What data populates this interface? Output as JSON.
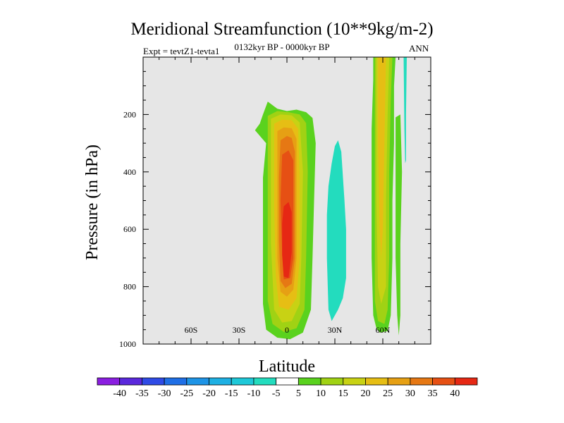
{
  "figure": {
    "title": "Meridional Streamfunction (10**9kg/m-2)",
    "expt_label": "Expt = tevtZ1-tevta1",
    "period_label": "0132kyr BP - 0000kyr BP",
    "season_label": "ANN"
  },
  "chart_data": {
    "type": "contour",
    "title": "Meridional Streamfunction (10**9kg/m-2)",
    "xlabel": "Latitude",
    "ylabel": "Pressure (in hPa)",
    "xlim": [
      -90,
      90
    ],
    "ylim": [
      1000,
      0
    ],
    "y_reversed": true,
    "background_color": "#e6e6e6",
    "x_ticks": [
      {
        "value": -60,
        "label": "60S"
      },
      {
        "value": -30,
        "label": "30S"
      },
      {
        "value": 0,
        "label": "0"
      },
      {
        "value": 30,
        "label": "30N"
      },
      {
        "value": 60,
        "label": "60N"
      }
    ],
    "y_ticks": [
      {
        "value": 200,
        "label": "200"
      },
      {
        "value": 400,
        "label": "400"
      },
      {
        "value": 600,
        "label": "600"
      },
      {
        "value": 800,
        "label": "800"
      },
      {
        "value": 1000,
        "label": "1000"
      }
    ],
    "colorbar": {
      "labels": [
        "-40",
        "-35",
        "-30",
        "-25",
        "-20",
        "-15",
        "-10",
        "-5",
        "5",
        "10",
        "15",
        "20",
        "25",
        "30",
        "35",
        "40"
      ],
      "colors": [
        "#8a1ee0",
        "#5a28dc",
        "#2f4be6",
        "#1f6fe6",
        "#1e94e6",
        "#1eb0e3",
        "#1ec8d8",
        "#23dcbe",
        "#ffffff",
        "#5ad21e",
        "#a0d214",
        "#c8d214",
        "#e6be14",
        "#e6a014",
        "#e67814",
        "#e65014",
        "#e62814"
      ]
    },
    "features": [
      {
        "name": "tropical-positive-cell",
        "center_lat": 0,
        "sign": "positive",
        "levels": [
          {
            "value": 5,
            "color": "#5ad21e",
            "points": [
              [
                -17,
                232
              ],
              [
                -15,
                200
              ],
              [
                -12,
                155
              ],
              [
                -6,
                180
              ],
              [
                0,
                188
              ],
              [
                6,
                183
              ],
              [
                12,
                192
              ],
              [
                16,
                212
              ],
              [
                18,
                300
              ],
              [
                17,
                500
              ],
              [
                16,
                700
              ],
              [
                15,
                880
              ],
              [
                10,
                960
              ],
              [
                2,
                983
              ],
              [
                -6,
                978
              ],
              [
                -13,
                950
              ],
              [
                -15,
                860
              ],
              [
                -15,
                650
              ],
              [
                -15,
                420
              ],
              [
                -13,
                300
              ],
              [
                -20,
                255
              ]
            ]
          },
          {
            "value": 10,
            "color": "#a0d214",
            "points": [
              [
                -12,
                205
              ],
              [
                -6,
                188
              ],
              [
                1,
                192
              ],
              [
                8,
                200
              ],
              [
                12,
                230
              ],
              [
                13,
                400
              ],
              [
                12,
                700
              ],
              [
                11,
                880
              ],
              [
                6,
                945
              ],
              [
                -2,
                958
              ],
              [
                -9,
                930
              ],
              [
                -12,
                850
              ],
              [
                -12,
                600
              ],
              [
                -12,
                350
              ]
            ]
          },
          {
            "value": 15,
            "color": "#c8d214",
            "points": [
              [
                -10,
                215
              ],
              [
                -4,
                200
              ],
              [
                3,
                203
              ],
              [
                8,
                228
              ],
              [
                10,
                400
              ],
              [
                9,
                700
              ],
              [
                8,
                860
              ],
              [
                3,
                920
              ],
              [
                -3,
                925
              ],
              [
                -8,
                880
              ],
              [
                -10,
                650
              ],
              [
                -10,
                360
              ]
            ]
          },
          {
            "value": 20,
            "color": "#e6be14",
            "points": [
              [
                -8,
                232
              ],
              [
                -3,
                218
              ],
              [
                3,
                220
              ],
              [
                7,
                250
              ],
              [
                8,
                420
              ],
              [
                8,
                700
              ],
              [
                6,
                840
              ],
              [
                1,
                880
              ],
              [
                -5,
                870
              ],
              [
                -7,
                760
              ],
              [
                -8,
                520
              ]
            ]
          },
          {
            "value": 25,
            "color": "#e6a014",
            "points": [
              [
                -6,
                258
              ],
              [
                -2,
                245
              ],
              [
                3,
                248
              ],
              [
                6,
                285
              ],
              [
                6,
                450
              ],
              [
                6,
                700
              ],
              [
                4,
                810
              ],
              [
                0,
                835
              ],
              [
                -4,
                818
              ],
              [
                -6,
                700
              ],
              [
                -6,
                460
              ]
            ]
          },
          {
            "value": 30,
            "color": "#e67814",
            "points": [
              [
                -4,
                290
              ],
              [
                0,
                275
              ],
              [
                3,
                282
              ],
              [
                5,
                330
              ],
              [
                5,
                500
              ],
              [
                5,
                700
              ],
              [
                3,
                790
              ],
              [
                -1,
                805
              ],
              [
                -4,
                780
              ],
              [
                -5,
                640
              ],
              [
                -5,
                420
              ]
            ]
          },
          {
            "value": 35,
            "color": "#e65014",
            "points": [
              [
                -3,
                340
              ],
              [
                1,
                325
              ],
              [
                4,
                360
              ],
              [
                4,
                550
              ],
              [
                4,
                700
              ],
              [
                2,
                770
              ],
              [
                -2,
                775
              ],
              [
                -3,
                680
              ],
              [
                -4,
                500
              ]
            ]
          },
          {
            "value": 40,
            "color": "#e62814",
            "points": [
              [
                -2,
                520
              ],
              [
                1,
                505
              ],
              [
                3,
                540
              ],
              [
                3,
                680
              ],
              [
                1,
                770
              ],
              [
                -2,
                765
              ],
              [
                -3,
                690
              ],
              [
                -3,
                580
              ]
            ]
          }
        ]
      },
      {
        "name": "subtropical-negative-cell",
        "center_lat": 32,
        "sign": "negative",
        "levels": [
          {
            "value": -5,
            "color": "#23dcbe",
            "points": [
              [
                30,
                310
              ],
              [
                32,
                290
              ],
              [
                34,
                330
              ],
              [
                36,
                500
              ],
              [
                37,
                600
              ],
              [
                37,
                770
              ],
              [
                35,
                840
              ],
              [
                32,
                880
              ],
              [
                28,
                920
              ],
              [
                26,
                880
              ],
              [
                25,
                700
              ],
              [
                25,
                550
              ],
              [
                26,
                450
              ],
              [
                28,
                370
              ]
            ]
          }
        ]
      },
      {
        "name": "midlatitude-positive-cell",
        "center_lat": 60,
        "sign": "positive",
        "levels": [
          {
            "value": 5,
            "color": "#5ad21e",
            "points": [
              [
                54,
                0
              ],
              [
                68,
                0
              ],
              [
                67,
                100
              ],
              [
                67,
                300
              ],
              [
                66,
                500
              ],
              [
                66,
                700
              ],
              [
                65,
                900
              ],
              [
                63,
                955
              ],
              [
                58,
                960
              ],
              [
                56,
                945
              ],
              [
                54,
                900
              ],
              [
                53,
                700
              ],
              [
                53,
                500
              ],
              [
                53,
                250
              ],
              [
                54,
                80
              ]
            ]
          },
          {
            "value": 10,
            "color": "#a0d214",
            "points": [
              [
                55,
                0
              ],
              [
                66,
                0
              ],
              [
                65,
                150
              ],
              [
                64,
                400
              ],
              [
                64,
                700
              ],
              [
                63,
                880
              ],
              [
                61,
                930
              ],
              [
                57,
                920
              ],
              [
                55,
                850
              ],
              [
                55,
                600
              ],
              [
                55,
                300
              ]
            ]
          },
          {
            "value": 15,
            "color": "#c8d214",
            "points": [
              [
                56,
                0
              ],
              [
                64,
                0
              ],
              [
                63,
                200
              ],
              [
                62,
                500
              ],
              [
                62,
                800
              ],
              [
                59,
                860
              ],
              [
                57,
                800
              ],
              [
                56,
                500
              ],
              [
                56,
                200
              ]
            ]
          },
          {
            "value": 20,
            "color": "#e6be14",
            "points": [
              [
                57,
                0
              ],
              [
                62,
                0
              ],
              [
                61,
                300
              ],
              [
                60,
                600
              ],
              [
                59,
                700
              ],
              [
                58,
                600
              ],
              [
                57,
                300
              ]
            ]
          }
        ]
      },
      {
        "name": "high-latitude-positive-strip",
        "center_lat": 70,
        "sign": "positive",
        "levels": [
          {
            "value": 5,
            "color": "#5ad21e",
            "points": [
              [
                68,
                210
              ],
              [
                71,
                200
              ],
              [
                72,
                400
              ],
              [
                71,
                650
              ],
              [
                71,
                900
              ],
              [
                70,
                970
              ],
              [
                69,
                900
              ],
              [
                68,
                700
              ],
              [
                68,
                450
              ]
            ]
          }
        ]
      },
      {
        "name": "high-latitude-negative-strip",
        "center_lat": 74,
        "sign": "negative",
        "levels": [
          {
            "value": -5,
            "color": "#23dcbe",
            "points": [
              [
                73,
                0
              ],
              [
                75,
                0
              ],
              [
                74.5,
                200
              ],
              [
                74.5,
                360
              ],
              [
                74,
                370
              ],
              [
                73.5,
                250
              ]
            ]
          }
        ]
      }
    ]
  }
}
